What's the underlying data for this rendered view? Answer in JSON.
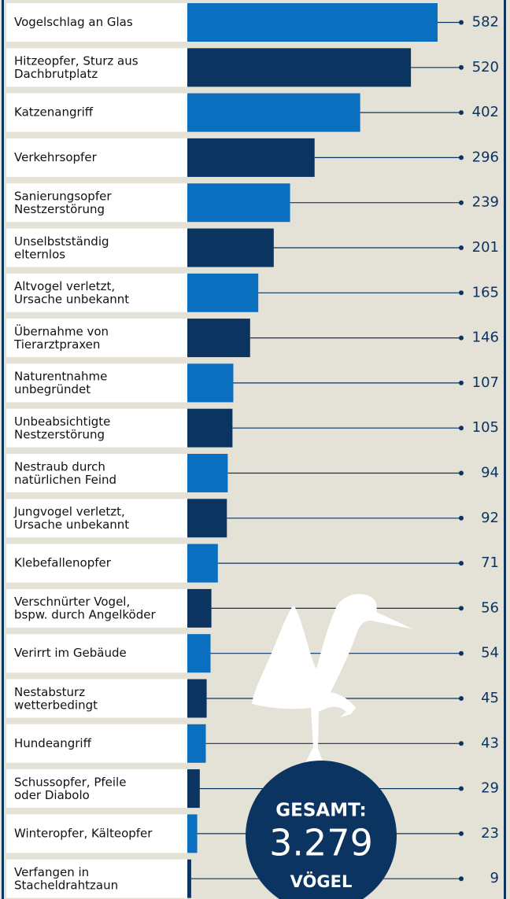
{
  "chart_data": {
    "type": "bar",
    "categories": [
      "Vogelschlag an Glas",
      "Hitzeopfer, Sturz aus\nDachbrutplatz",
      "Katzenangriff",
      "Verkehrsopfer",
      "Sanierungsopfer\nNestzerstörung",
      "Unselbstständig\nelternlos",
      "Altvogel verletzt,\nUrsache unbekannt",
      "Übernahme von\nTierarztpraxen",
      "Naturentnahme\nunbegründet",
      "Unbeabsichtigte\nNestzerstörung",
      "Nestraub durch\nnatürlichen Feind",
      "Jungvogel verletzt,\nUrsache unbekannt",
      "Klebefallenopfer",
      "Verschnürter Vogel,\nbspw. durch Angelköder",
      "Verirrt im Gebäude",
      "Nestabsturz\nwetterbedingt",
      "Hundeangriff",
      "Schussopfer, Pfeile\noder Diabolo",
      "Winteropfer, Kälteopfer",
      "Verfangen in\nStacheldrahtzaun"
    ],
    "values": [
      582,
      520,
      402,
      296,
      239,
      201,
      165,
      146,
      107,
      105,
      94,
      92,
      71,
      56,
      54,
      45,
      43,
      29,
      23,
      9
    ],
    "colors": [
      "#0b6fc0",
      "#0b3461"
    ],
    "total": {
      "title": "GESAMT:",
      "value": 3279,
      "label": "3.279",
      "unit": "VÖGEL"
    }
  }
}
